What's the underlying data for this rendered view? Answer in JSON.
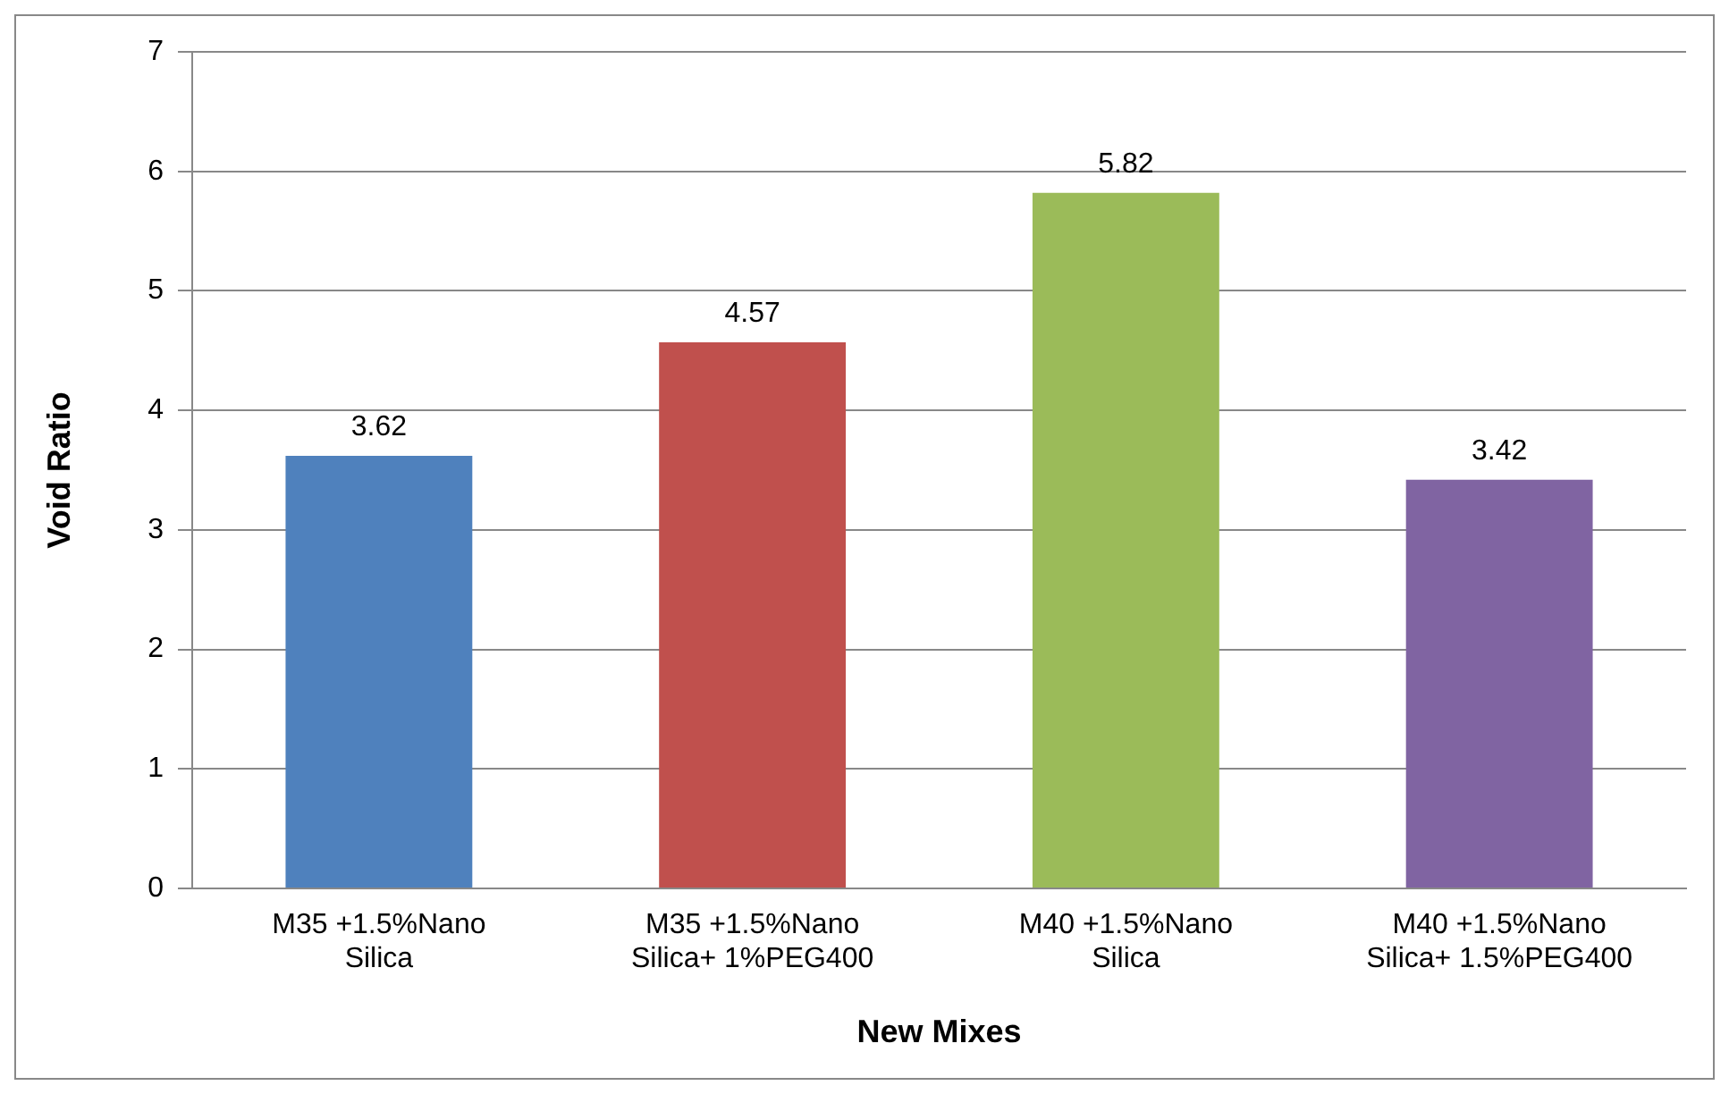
{
  "chart_data": {
    "type": "bar",
    "xlabel": "New Mixes",
    "ylabel": "Void Ratio",
    "categories": [
      "M35 +1.5%Nano Silica",
      "M35 +1.5%Nano Silica+ 1%PEG400",
      "M40 +1.5%Nano Silica",
      "M40 +1.5%Nano Silica+ 1.5%PEG400"
    ],
    "values": [
      3.62,
      4.57,
      5.82,
      3.42
    ],
    "colors": [
      "#4f81bd",
      "#c0504d",
      "#9bbb59",
      "#8064a2"
    ],
    "ylim": [
      0,
      7
    ],
    "yticks": [
      0,
      1,
      2,
      3,
      4,
      5,
      6,
      7
    ],
    "grid": "y",
    "data_labels": true,
    "legend": false
  }
}
